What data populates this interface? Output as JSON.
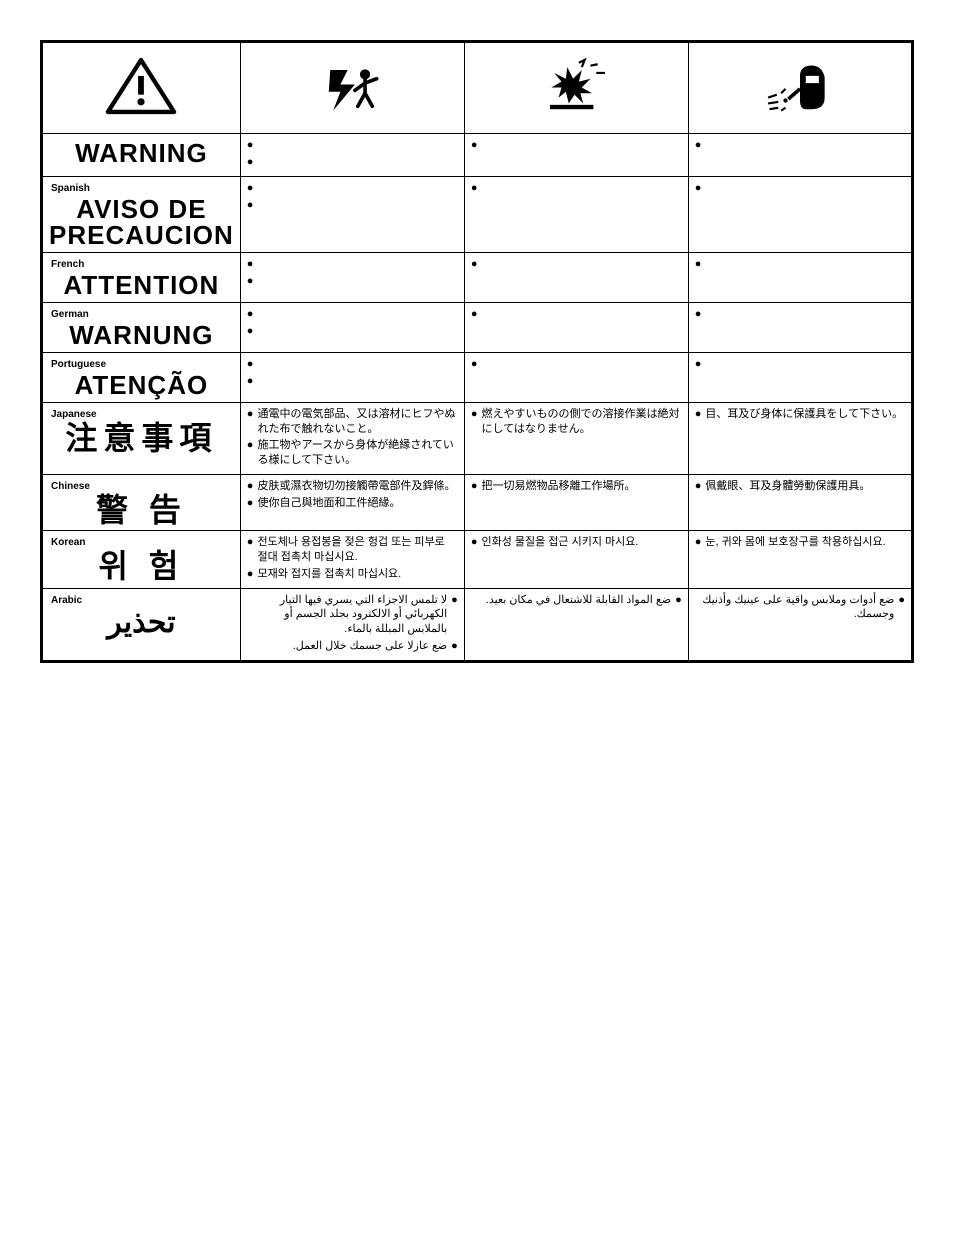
{
  "colors": {
    "border": "#000000",
    "background": "#ffffff",
    "text": "#000000"
  },
  "icons": {
    "col0": "warning-triangle",
    "col1": "electric-shock",
    "col2": "explosion",
    "col3": "welding-face-shield"
  },
  "rows": [
    {
      "lang_label": "",
      "lang_word": "WARNING",
      "lang_class": "",
      "cells": [
        {
          "bullets": [
            "",
            ""
          ]
        },
        {
          "bullets": [
            ""
          ]
        },
        {
          "bullets": [
            ""
          ]
        }
      ]
    },
    {
      "lang_label": "Spanish",
      "lang_word": "AVISO DE PRECAUCION",
      "lang_class": "",
      "cells": [
        {
          "bullets": [
            "",
            ""
          ]
        },
        {
          "bullets": [
            ""
          ]
        },
        {
          "bullets": [
            ""
          ]
        }
      ]
    },
    {
      "lang_label": "French",
      "lang_word": "ATTENTION",
      "lang_class": "",
      "cells": [
        {
          "bullets": [
            "",
            ""
          ]
        },
        {
          "bullets": [
            ""
          ]
        },
        {
          "bullets": [
            ""
          ]
        }
      ]
    },
    {
      "lang_label": "German",
      "lang_word": "WARNUNG",
      "lang_class": "",
      "cells": [
        {
          "bullets": [
            "",
            ""
          ]
        },
        {
          "bullets": [
            ""
          ]
        },
        {
          "bullets": [
            ""
          ]
        }
      ]
    },
    {
      "lang_label": "Portuguese",
      "lang_word": "ATENÇÃO",
      "lang_class": "",
      "cells": [
        {
          "bullets": [
            "",
            ""
          ]
        },
        {
          "bullets": [
            ""
          ]
        },
        {
          "bullets": [
            ""
          ]
        }
      ]
    },
    {
      "lang_label": "Japanese",
      "lang_word": "注意事項",
      "lang_class": "cjk",
      "cells": [
        {
          "bullets": [
            "通電中の電気部品、又は溶材にヒフやぬれた布で触れないこと。",
            "施工物やアースから身体が絶縁されている様にして下さい。"
          ]
        },
        {
          "bullets": [
            "燃えやすいものの側での溶接作業は絶対にしてはなりません。"
          ]
        },
        {
          "bullets": [
            "目、耳及び身体に保護具をして下さい。"
          ]
        }
      ]
    },
    {
      "lang_label": "Chinese",
      "lang_word": "警 告",
      "lang_class": "cjk",
      "cells": [
        {
          "bullets": [
            "皮肤或濕衣物切勿接觸帶電部件及銲條。",
            "使你自己與地面和工件絕緣。"
          ]
        },
        {
          "bullets": [
            "把一切易燃物品移離工作場所。"
          ]
        },
        {
          "bullets": [
            "佩戴眼、耳及身體勞動保護用具。"
          ]
        }
      ]
    },
    {
      "lang_label": "Korean",
      "lang_word": "위 험",
      "lang_class": "cjk",
      "cells": [
        {
          "bullets": [
            "전도체나 용접봉을 젖은 헝겁 또는 피부로 절대 접촉치 마십시요.",
            "모재와 접지를 접촉치 마십시요."
          ]
        },
        {
          "bullets": [
            "인화성 물질을 접근 시키지 마시요."
          ]
        },
        {
          "bullets": [
            "눈, 귀와 몸에 보호장구를 착용하십시요."
          ]
        }
      ]
    },
    {
      "lang_label": "Arabic",
      "lang_word": "تحذير",
      "lang_class": "arabic",
      "rtl": true,
      "cells": [
        {
          "bullets": [
            "لا تلمس الاجزاء التي يسري فيها التيار الكهربائي أو الالكترود بجلد الجسم أو بالملابس المبللة بالماء.",
            "ضع عازلا على جسمك خلال العمل."
          ]
        },
        {
          "bullets": [
            "ضع المواد القابلة للاشتعال في مكان بعيد."
          ]
        },
        {
          "bullets": [
            "ضع أدوات وملابس واقية على عينيك وأذنيك وجسمك."
          ]
        }
      ]
    }
  ]
}
